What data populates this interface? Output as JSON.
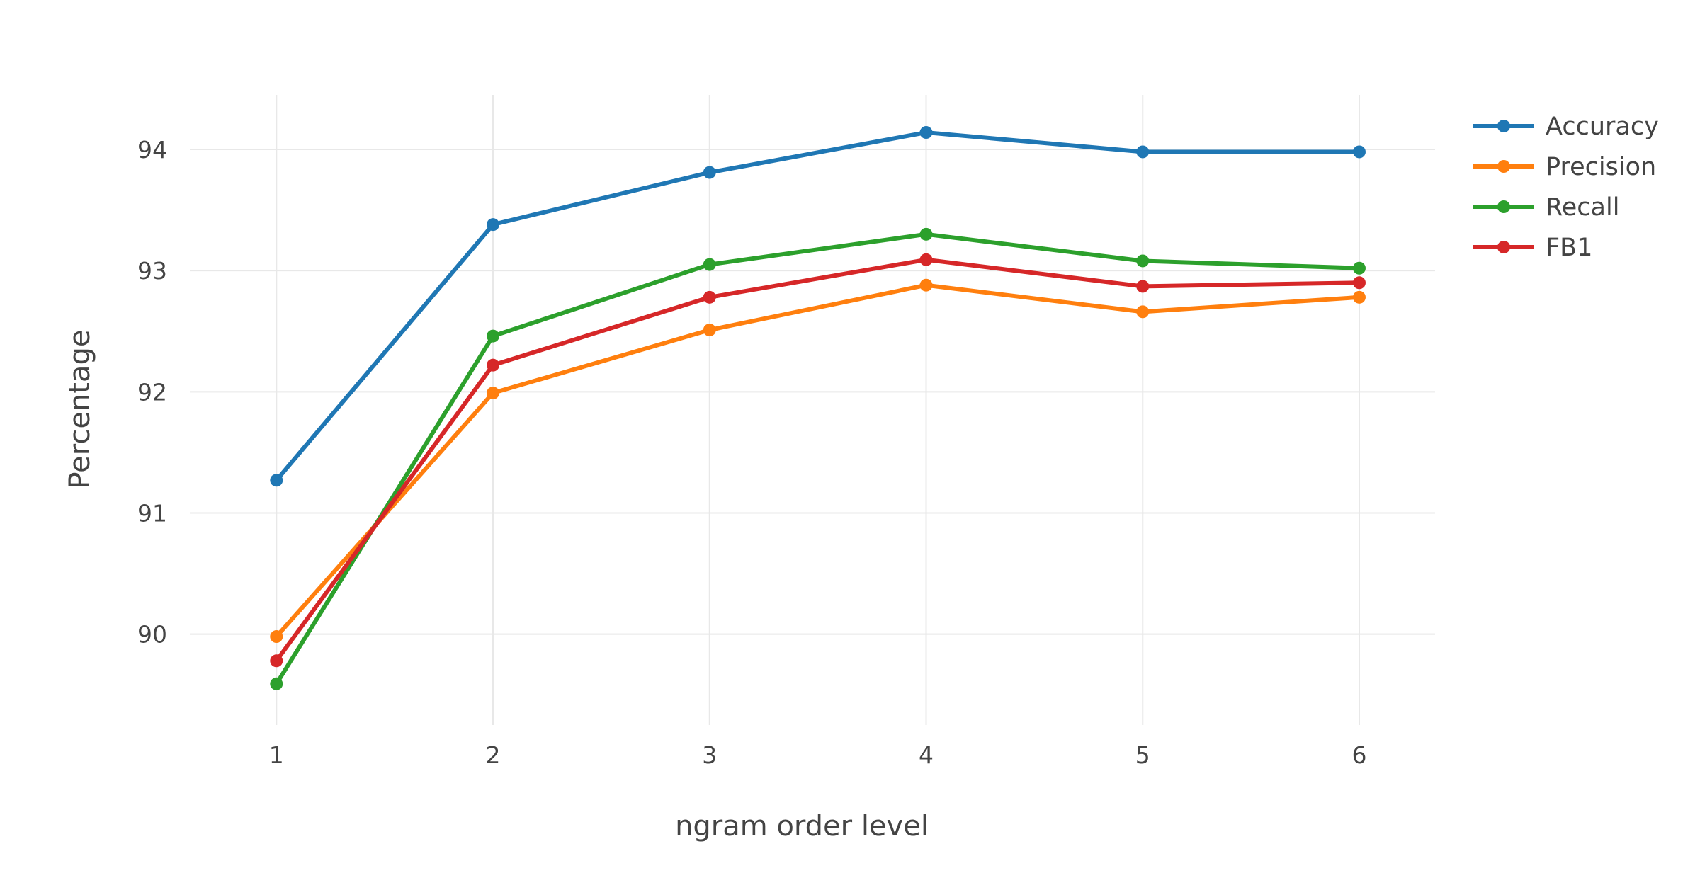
{
  "chart_data": {
    "type": "line",
    "xlabel": "ngram order level",
    "ylabel": "Percentage",
    "x": [
      1,
      2,
      3,
      4,
      5,
      6
    ],
    "xlim": [
      0.6,
      6.35
    ],
    "ylim": [
      89.25,
      94.45
    ],
    "yticks": [
      90,
      91,
      92,
      93,
      94
    ],
    "grid": true,
    "legend_position": "top-right",
    "series": [
      {
        "name": "Accuracy",
        "color": "#1f77b4",
        "values": [
          91.27,
          93.38,
          93.81,
          94.14,
          93.98,
          93.98
        ]
      },
      {
        "name": "Precision",
        "color": "#ff7f0e",
        "values": [
          89.98,
          91.99,
          92.51,
          92.88,
          92.66,
          92.78
        ]
      },
      {
        "name": "Recall",
        "color": "#2ca02c",
        "values": [
          89.59,
          92.46,
          93.05,
          93.3,
          93.08,
          93.02
        ]
      },
      {
        "name": "FB1",
        "color": "#d62728",
        "values": [
          89.78,
          92.22,
          92.78,
          93.09,
          92.87,
          92.9
        ]
      }
    ]
  }
}
